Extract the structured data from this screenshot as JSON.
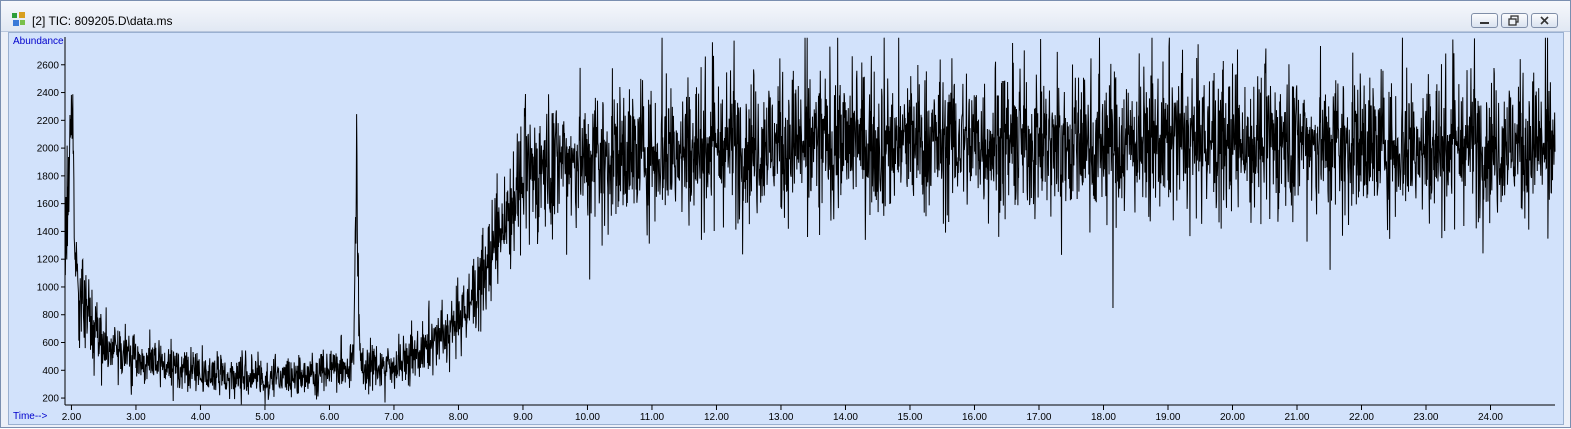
{
  "window": {
    "title": "[2] TIC: 809205.D\\data.ms",
    "icons": {
      "app": "chromatogram-app-icon",
      "minimize": "minimize-icon",
      "restore": "restore-icon",
      "close": "close-icon"
    },
    "colors": {
      "plot_background": "#d2e2fb",
      "trace": "#000000",
      "axis_label": "#0000cc"
    }
  },
  "chart_data": {
    "type": "line",
    "title": "",
    "xlabel": "Time-->",
    "ylabel": "Abundance",
    "xlim": [
      1.9,
      25.0
    ],
    "ylim": [
      150,
      2800
    ],
    "grid": false,
    "x_ticks": [
      "2.00",
      "3.00",
      "4.00",
      "5.00",
      "6.00",
      "7.00",
      "8.00",
      "9.00",
      "10.00",
      "11.00",
      "12.00",
      "13.00",
      "14.00",
      "15.00",
      "16.00",
      "17.00",
      "18.00",
      "19.00",
      "20.00",
      "21.00",
      "22.00",
      "23.00",
      "24.00"
    ],
    "y_ticks": [
      "200",
      "400",
      "600",
      "800",
      "1000",
      "1200",
      "1400",
      "1600",
      "1800",
      "2000",
      "2200",
      "2400",
      "2600"
    ],
    "series": [
      {
        "points": [
          [
            1.9,
            1400
          ],
          [
            1.95,
            1650
          ],
          [
            2.0,
            2500
          ],
          [
            2.03,
            1800
          ],
          [
            2.05,
            1300
          ],
          [
            2.1,
            1100
          ],
          [
            2.15,
            950
          ],
          [
            2.2,
            850
          ],
          [
            2.3,
            750
          ],
          [
            2.4,
            680
          ],
          [
            2.5,
            620
          ],
          [
            2.7,
            560
          ],
          [
            3.0,
            480
          ],
          [
            3.2,
            450
          ],
          [
            3.5,
            420
          ],
          [
            4.0,
            380
          ],
          [
            4.5,
            360
          ],
          [
            5.0,
            350
          ],
          [
            5.5,
            360
          ],
          [
            6.0,
            400
          ],
          [
            6.3,
            420
          ],
          [
            6.38,
            600
          ],
          [
            6.4,
            1400
          ],
          [
            6.42,
            1800
          ],
          [
            6.44,
            1300
          ],
          [
            6.46,
            600
          ],
          [
            6.5,
            430
          ],
          [
            7.0,
            430
          ],
          [
            7.2,
            470
          ],
          [
            7.5,
            550
          ],
          [
            7.8,
            650
          ],
          [
            8.0,
            750
          ],
          [
            8.2,
            900
          ],
          [
            8.4,
            1100
          ],
          [
            8.6,
            1350
          ],
          [
            8.8,
            1600
          ],
          [
            9.0,
            1780
          ],
          [
            9.3,
            1850
          ],
          [
            9.6,
            1900
          ],
          [
            10.0,
            1920
          ],
          [
            10.5,
            1950
          ],
          [
            11.0,
            1980
          ],
          [
            11.5,
            2000
          ],
          [
            12.0,
            2010
          ],
          [
            13.0,
            2030
          ],
          [
            14.0,
            2050
          ],
          [
            15.0,
            2040
          ],
          [
            16.0,
            2050
          ],
          [
            17.0,
            2040
          ],
          [
            18.0,
            2030
          ],
          [
            19.0,
            2040
          ],
          [
            20.0,
            2050
          ],
          [
            21.0,
            2040
          ],
          [
            22.0,
            2030
          ],
          [
            23.0,
            2020
          ],
          [
            24.0,
            2030
          ],
          [
            25.0,
            2020
          ]
        ]
      }
    ]
  }
}
